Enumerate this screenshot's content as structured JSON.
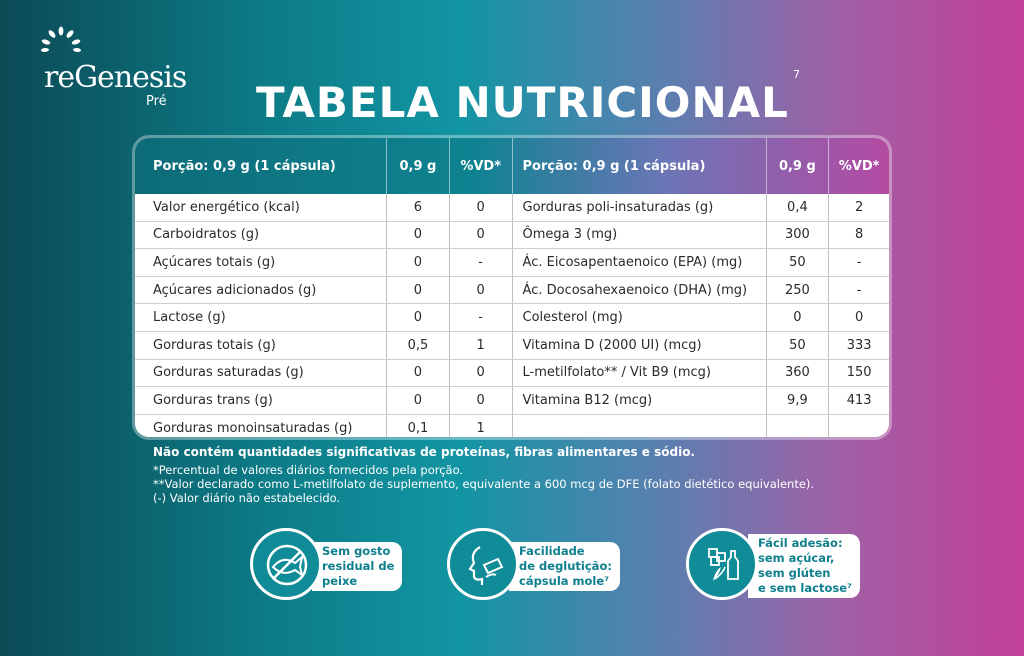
{
  "brand": {
    "name": "reGenesis",
    "sub": "Pré"
  },
  "title": "TABELA NUTRICIONAL",
  "title_sup": "7",
  "table": {
    "headers": [
      "Porção: 0,9 g (1 cápsula)",
      "0,9 g",
      "%VD*",
      "Porção: 0,9 g (1 cápsula)",
      "0,9 g",
      "%VD*"
    ],
    "rows": [
      [
        "Valor energético (kcal)",
        "6",
        "0",
        "Gorduras poli-insaturadas (g)",
        "0,4",
        "2"
      ],
      [
        "Carboidratos (g)",
        "0",
        "0",
        "Ômega 3 (mg)",
        "300",
        "8"
      ],
      [
        "Açúcares totais (g)",
        "0",
        "-",
        "Ác. Eicosapentaenoico (EPA) (mg)",
        "50",
        "-"
      ],
      [
        "Açúcares adicionados (g)",
        "0",
        "0",
        "Ác. Docosahexaenoico (DHA) (mg)",
        "250",
        "-"
      ],
      [
        "Lactose (g)",
        "0",
        "-",
        "Colesterol (mg)",
        "0",
        "0"
      ],
      [
        "Gorduras totais (g)",
        "0,5",
        "1",
        "Vitamina D (2000 UI) (mcg)",
        "50",
        "333"
      ],
      [
        "Gorduras saturadas (g)",
        "0",
        "0",
        "L-metilfolato** / Vit B9 (mcg)",
        "360",
        "150"
      ],
      [
        "Gorduras trans (g)",
        "0",
        "0",
        "Vitamina B12 (mcg)",
        "9,9",
        "413"
      ],
      [
        "Gorduras monoinsaturadas (g)",
        "0,1",
        "1",
        "",
        "",
        ""
      ]
    ]
  },
  "notes": {
    "bold": "Não contém quantidades significativas de proteínas, fibras alimentares e sódio.",
    "lines": [
      "*Percentual de valores diários fornecidos pela porção.",
      "**Valor declarado como L-metilfolato de suplemento, equivalente a 600 mcg de DFE (folato dietético equivalente).",
      "(-) Valor diário não estabelecido."
    ]
  },
  "badges": [
    {
      "icon": "fish-no-taste-icon",
      "lines": [
        "Sem gosto",
        "residual de",
        "peixe"
      ]
    },
    {
      "icon": "swallow-icon",
      "lines": [
        "Facilidade",
        "de deglutição:",
        "cápsula mole⁷"
      ]
    },
    {
      "icon": "sugar-gluten-lactose-free-icon",
      "lines": [
        "Fácil adesão:",
        "sem açúcar,",
        "sem glúten",
        "e sem lactose⁷"
      ]
    }
  ]
}
